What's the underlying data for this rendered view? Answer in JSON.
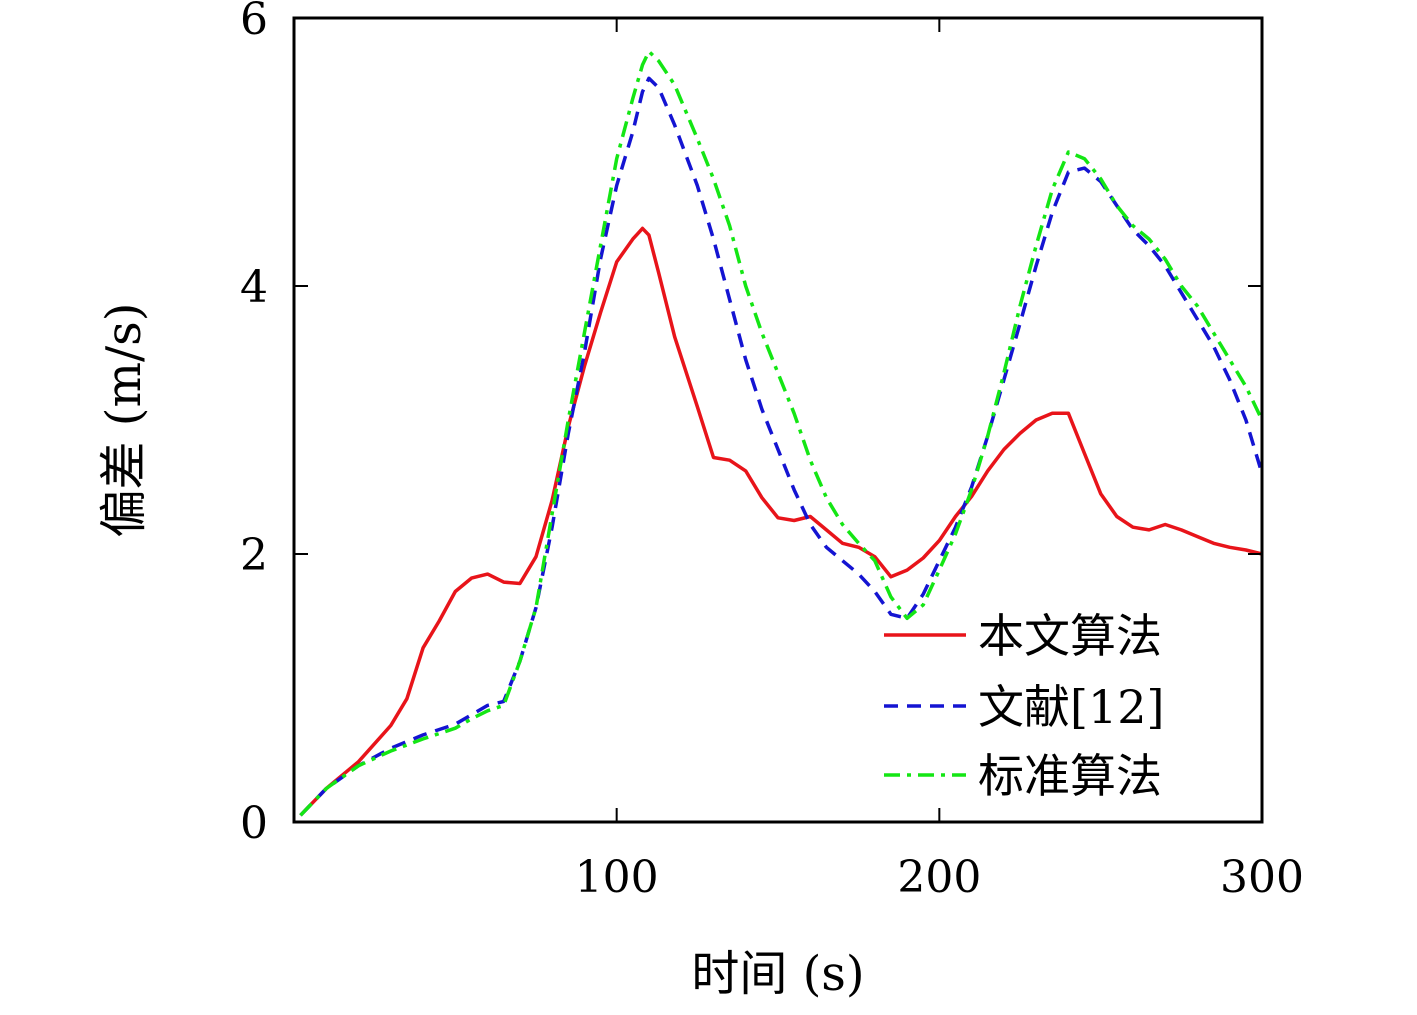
{
  "chart_data": {
    "type": "line",
    "title": "",
    "xlabel": "时间 (s)",
    "ylabel": "偏差 (m/s)",
    "xlim": [
      0,
      300
    ],
    "ylim": [
      0,
      6
    ],
    "x_ticks": [
      100,
      200,
      300
    ],
    "y_ticks": [
      0,
      2,
      4,
      6
    ],
    "x_tick_labels": [
      "100",
      "200",
      "300"
    ],
    "y_tick_labels": [
      "0",
      "2",
      "4",
      "6"
    ],
    "grid": false,
    "legend_position": "bottom-right",
    "series": [
      {
        "name": "本文算法",
        "color": "#e8141a",
        "dash": "solid",
        "x": [
          2,
          10,
          20,
          30,
          35,
          40,
          45,
          50,
          55,
          60,
          65,
          70,
          75,
          80,
          85,
          90,
          95,
          100,
          105,
          108,
          110,
          113,
          118,
          125,
          130,
          135,
          140,
          145,
          150,
          155,
          160,
          165,
          170,
          175,
          180,
          185,
          190,
          195,
          200,
          205,
          210,
          215,
          220,
          225,
          230,
          235,
          240,
          245,
          250,
          255,
          260,
          265,
          270,
          275,
          280,
          285,
          290,
          295,
          300
        ],
        "y": [
          0.05,
          0.25,
          0.45,
          0.72,
          0.92,
          1.3,
          1.5,
          1.72,
          1.82,
          1.85,
          1.79,
          1.78,
          1.98,
          2.4,
          2.95,
          3.4,
          3.8,
          4.18,
          4.35,
          4.43,
          4.38,
          4.1,
          3.62,
          3.1,
          2.72,
          2.7,
          2.62,
          2.42,
          2.27,
          2.25,
          2.28,
          2.18,
          2.08,
          2.05,
          1.98,
          1.83,
          1.88,
          1.97,
          2.1,
          2.28,
          2.43,
          2.62,
          2.78,
          2.9,
          3.0,
          3.05,
          3.05,
          2.75,
          2.45,
          2.28,
          2.2,
          2.18,
          2.22,
          2.18,
          2.13,
          2.08,
          2.05,
          2.03,
          2.0
        ]
      },
      {
        "name": "文献[12]",
        "color": "#1414d2",
        "dash": "dashed",
        "x": [
          2,
          10,
          20,
          30,
          40,
          50,
          55,
          60,
          65,
          70,
          75,
          80,
          85,
          90,
          95,
          100,
          105,
          108,
          110,
          113,
          118,
          125,
          130,
          135,
          140,
          145,
          150,
          155,
          160,
          165,
          170,
          175,
          180,
          185,
          190,
          195,
          200,
          205,
          210,
          215,
          220,
          225,
          230,
          235,
          240,
          245,
          250,
          255,
          260,
          265,
          270,
          275,
          280,
          285,
          290,
          295,
          300
        ],
        "y": [
          0.05,
          0.25,
          0.42,
          0.55,
          0.65,
          0.73,
          0.8,
          0.87,
          0.9,
          1.2,
          1.6,
          2.2,
          2.9,
          3.5,
          4.2,
          4.75,
          5.15,
          5.45,
          5.55,
          5.48,
          5.2,
          4.75,
          4.35,
          3.9,
          3.45,
          3.08,
          2.78,
          2.48,
          2.22,
          2.05,
          1.95,
          1.85,
          1.72,
          1.55,
          1.52,
          1.7,
          1.95,
          2.2,
          2.5,
          2.88,
          3.3,
          3.72,
          4.15,
          4.55,
          4.85,
          4.88,
          4.78,
          4.6,
          4.42,
          4.3,
          4.15,
          3.95,
          3.75,
          3.55,
          3.3,
          3.0,
          2.6
        ]
      },
      {
        "name": "标准算法",
        "color": "#14e614",
        "dash": "dashdot",
        "x": [
          2,
          10,
          20,
          30,
          40,
          50,
          55,
          60,
          65,
          70,
          75,
          80,
          85,
          90,
          95,
          100,
          105,
          108,
          110,
          113,
          118,
          125,
          130,
          135,
          140,
          145,
          150,
          155,
          160,
          165,
          170,
          175,
          180,
          185,
          190,
          195,
          200,
          205,
          210,
          215,
          220,
          225,
          230,
          235,
          240,
          245,
          250,
          255,
          260,
          265,
          270,
          275,
          280,
          285,
          290,
          295,
          300
        ],
        "y": [
          0.05,
          0.25,
          0.42,
          0.53,
          0.62,
          0.7,
          0.77,
          0.83,
          0.87,
          1.2,
          1.6,
          2.3,
          3.0,
          3.65,
          4.3,
          4.95,
          5.4,
          5.65,
          5.75,
          5.68,
          5.5,
          5.1,
          4.8,
          4.45,
          4.0,
          3.65,
          3.35,
          3.05,
          2.7,
          2.42,
          2.22,
          2.08,
          1.95,
          1.68,
          1.52,
          1.62,
          1.88,
          2.15,
          2.48,
          2.88,
          3.35,
          3.85,
          4.3,
          4.72,
          5.0,
          4.95,
          4.8,
          4.6,
          4.45,
          4.35,
          4.2,
          4.0,
          3.85,
          3.65,
          3.45,
          3.25,
          3.0
        ]
      }
    ]
  }
}
